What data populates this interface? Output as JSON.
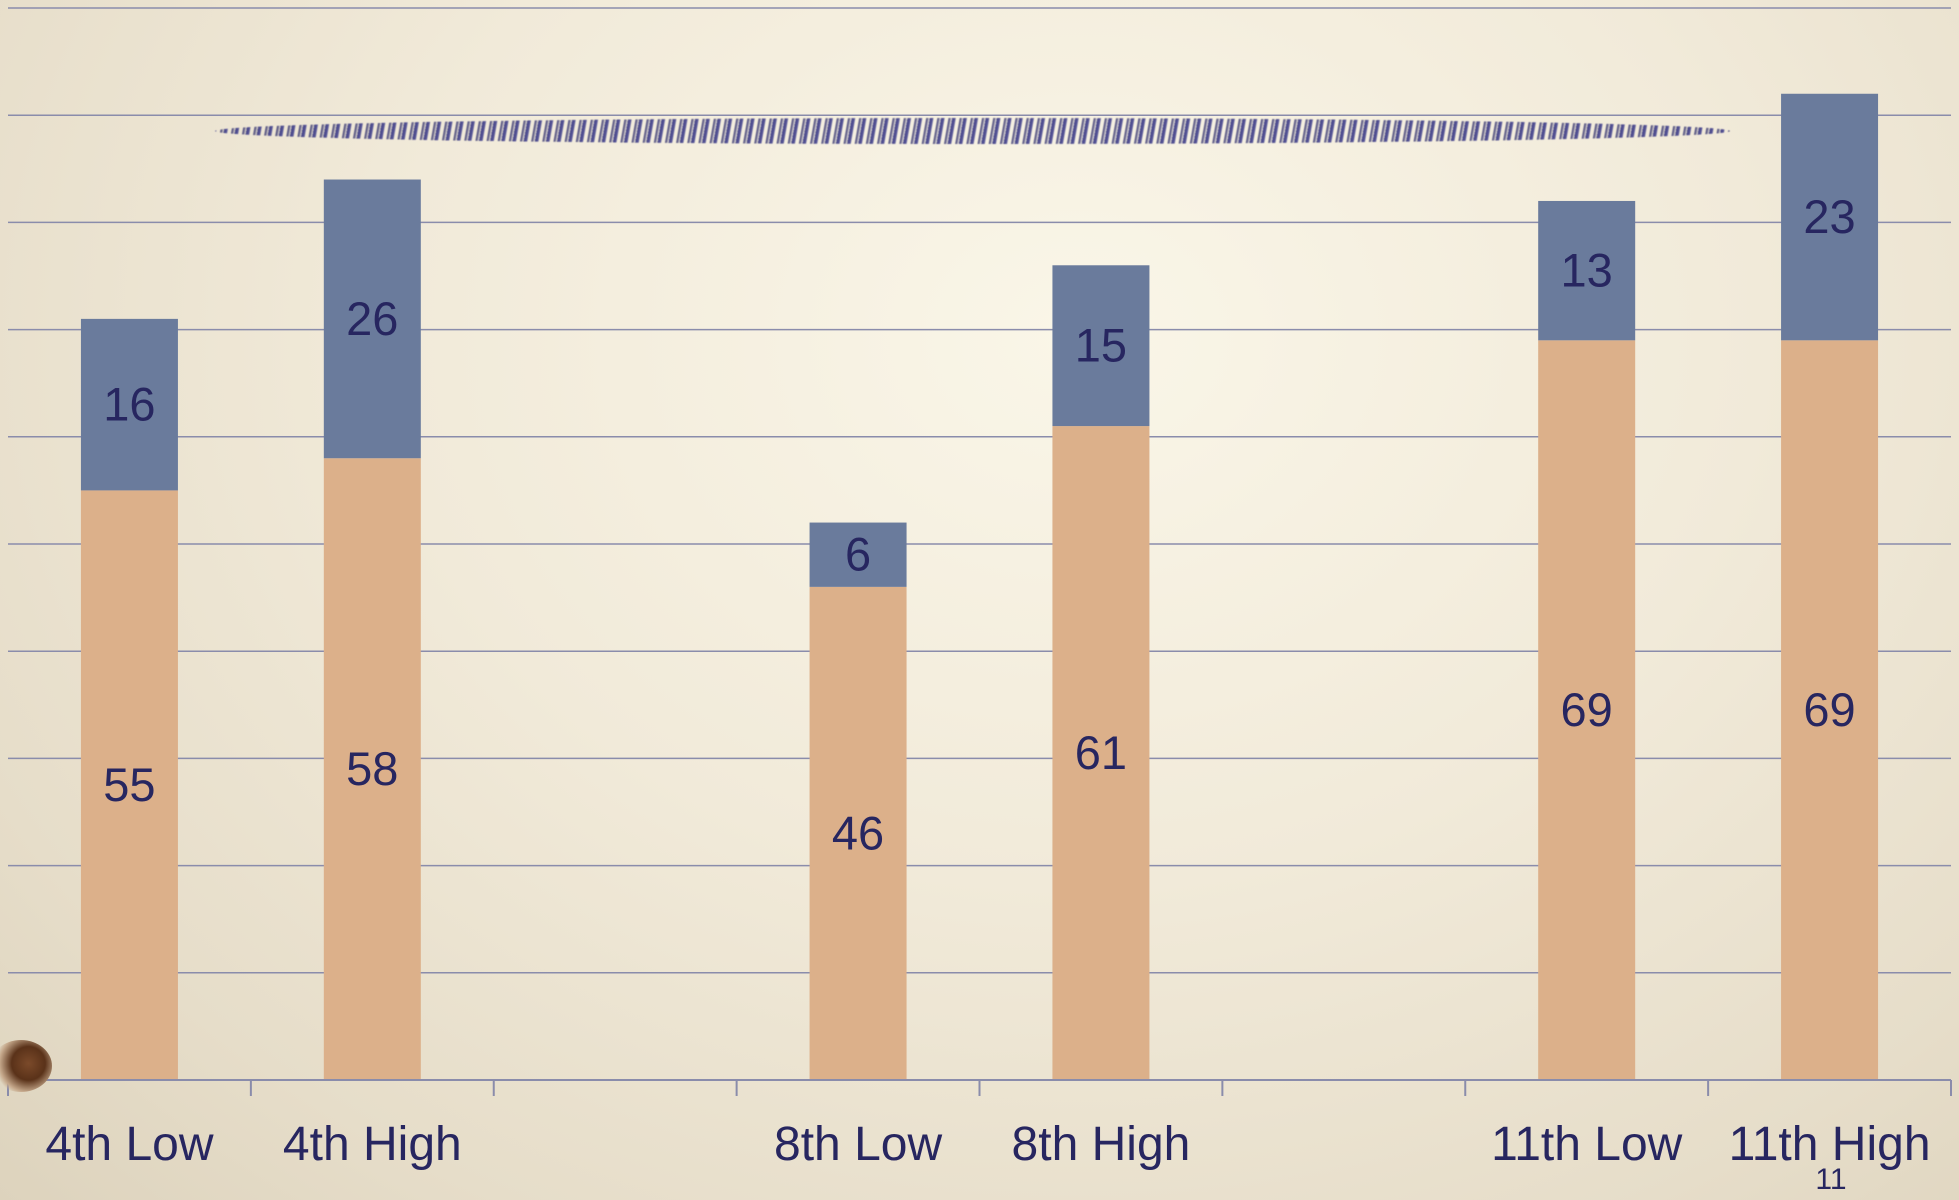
{
  "page_number": "11",
  "colors": {
    "bottom_series": "#dcb08a",
    "top_series": "#6a7b9c",
    "grid": "#8a8cab",
    "text": "#272660",
    "scribble": "#2b2a78"
  },
  "chart_data": {
    "type": "bar",
    "stacked": true,
    "title": "",
    "xlabel": "",
    "ylabel": "",
    "categories": [
      "4th Low",
      "4th High",
      "",
      "8th Low",
      "8th High",
      "",
      "11th Low",
      "11th High"
    ],
    "series": [
      {
        "values": [
          55,
          58,
          null,
          46,
          61,
          null,
          69,
          69
        ]
      },
      {
        "values": [
          16,
          26,
          null,
          6,
          15,
          null,
          13,
          23
        ]
      }
    ],
    "ylim": [
      0,
      100
    ],
    "grid": true,
    "legend": "none"
  }
}
